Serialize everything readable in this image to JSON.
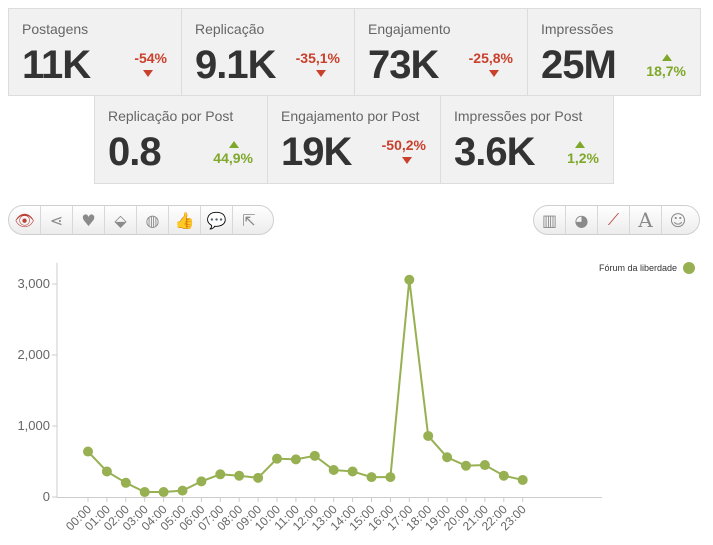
{
  "metrics_top": [
    {
      "label": "Postagens",
      "value": "11K",
      "change": "-54%",
      "dir": "down"
    },
    {
      "label": "Replicação",
      "value": "9.1K",
      "change": "-35,1%",
      "dir": "down"
    },
    {
      "label": "Engajamento",
      "value": "73K",
      "change": "-25,8%",
      "dir": "down"
    },
    {
      "label": "Impressões",
      "value": "25M",
      "change": "18,7%",
      "dir": "up"
    }
  ],
  "metrics_bottom": [
    {
      "label": "Replicação por Post",
      "value": "0.8",
      "change": "44,9%",
      "dir": "up"
    },
    {
      "label": "Engajamento por Post",
      "value": "19K",
      "change": "-50,2%",
      "dir": "down"
    },
    {
      "label": "Impressões por Post",
      "value": "3.6K",
      "change": "1,2%",
      "dir": "up"
    }
  ],
  "filter_icons": [
    "eye-icon",
    "share-icon",
    "heart-icon",
    "tag-icon",
    "globe-icon",
    "thumbs-up-icon",
    "comment-icon",
    "export-icon"
  ],
  "view_icons": [
    "bar-chart-icon",
    "pie-chart-icon",
    "line-chart-icon",
    "text-icon",
    "smiley-icon"
  ],
  "colors": {
    "series": "#97b052",
    "down": "#c9402c",
    "up": "#7fa82b",
    "active_icon": "#b8423a"
  },
  "chart_data": {
    "type": "line",
    "x": [
      "00:00",
      "01:00",
      "02:00",
      "03:00",
      "04:00",
      "05:00",
      "06:00",
      "07:00",
      "08:00",
      "09:00",
      "10:00",
      "11:00",
      "12:00",
      "13:00",
      "14:00",
      "15:00",
      "16:00",
      "17:00",
      "18:00",
      "19:00",
      "20:00",
      "21:00",
      "22:00",
      "23:00"
    ],
    "series": [
      {
        "name": "Fórum da liberdade",
        "values": [
          640,
          360,
          200,
          70,
          70,
          90,
          220,
          320,
          300,
          270,
          540,
          530,
          580,
          380,
          360,
          280,
          280,
          3060,
          860,
          560,
          440,
          450,
          300,
          240
        ]
      }
    ],
    "y_ticks": [
      {
        "value": 0,
        "label": "0"
      },
      {
        "value": 1000,
        "label": "1,000"
      },
      {
        "value": 2000,
        "label": "2,000"
      },
      {
        "value": 3000,
        "label": "3,000"
      }
    ],
    "ylim": [
      0,
      3300
    ],
    "legend": "top-right"
  }
}
